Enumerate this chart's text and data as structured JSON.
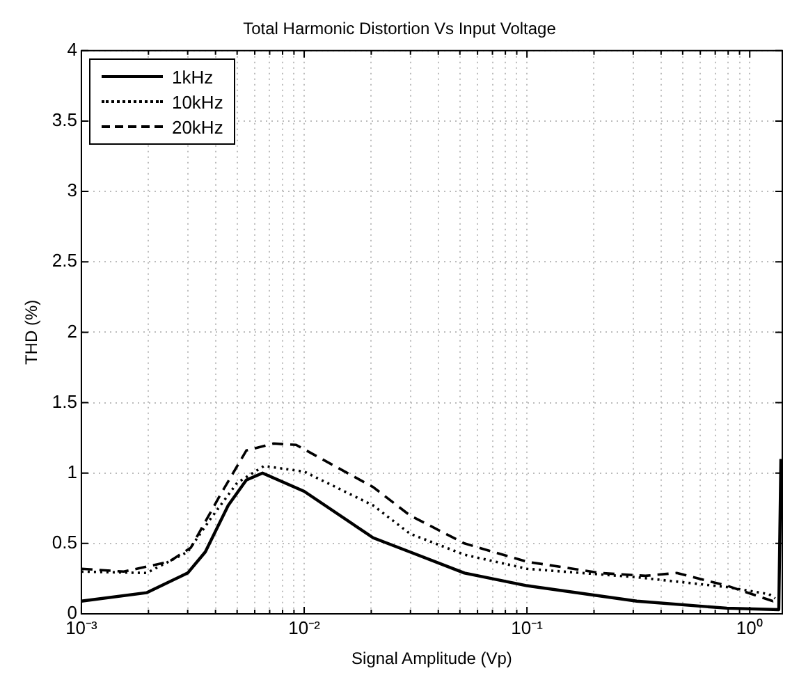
{
  "chart_data": {
    "type": "line",
    "title": "Total Harmonic Distortion Vs Input Voltage",
    "xlabel": "Signal Amplitude (Vp)",
    "ylabel": "THD (%)",
    "log": "x",
    "xlim": [
      0.001,
      1.4
    ],
    "ylim": [
      0,
      4
    ],
    "xticks": [
      {
        "value": 0.001,
        "label": "10⁻³"
      },
      {
        "value": 0.002,
        "label": null
      },
      {
        "value": 0.003,
        "label": null
      },
      {
        "value": 0.004,
        "label": null
      },
      {
        "value": 0.005,
        "label": null
      },
      {
        "value": 0.006,
        "label": null
      },
      {
        "value": 0.007,
        "label": null
      },
      {
        "value": 0.008,
        "label": null
      },
      {
        "value": 0.009,
        "label": null
      },
      {
        "value": 0.01,
        "label": "10⁻²"
      },
      {
        "value": 0.02,
        "label": null
      },
      {
        "value": 0.03,
        "label": null
      },
      {
        "value": 0.04,
        "label": null
      },
      {
        "value": 0.05,
        "label": null
      },
      {
        "value": 0.06,
        "label": null
      },
      {
        "value": 0.07,
        "label": null
      },
      {
        "value": 0.08,
        "label": null
      },
      {
        "value": 0.09,
        "label": null
      },
      {
        "value": 0.1,
        "label": "10⁻¹"
      },
      {
        "value": 0.2,
        "label": null
      },
      {
        "value": 0.3,
        "label": null
      },
      {
        "value": 0.4,
        "label": null
      },
      {
        "value": 0.5,
        "label": null
      },
      {
        "value": 0.6,
        "label": null
      },
      {
        "value": 0.7,
        "label": null
      },
      {
        "value": 0.8,
        "label": null
      },
      {
        "value": 0.9,
        "label": null
      },
      {
        "value": 1,
        "label": "10⁰"
      }
    ],
    "yticks": [
      0,
      0.5,
      1,
      1.5,
      2,
      2.5,
      3,
      3.5,
      4
    ],
    "grid": true,
    "legend": "top left",
    "marker": "none",
    "series": [
      {
        "name": "1kHz",
        "color": "#000000",
        "line_style": "solid",
        "x": [
          0.001,
          0.00196,
          0.003,
          0.0036,
          0.00456,
          0.0055,
          0.0065,
          0.01,
          0.0204,
          0.0298,
          0.0524,
          0.1,
          0.311,
          0.79,
          1.35,
          1.38
        ],
        "values": [
          0.09,
          0.15,
          0.29,
          0.44,
          0.77,
          0.95,
          1.0,
          0.87,
          0.54,
          0.44,
          0.29,
          0.2,
          0.09,
          0.04,
          0.03,
          1.1
        ]
      },
      {
        "name": "10kHz",
        "color": "#000000",
        "line_style": "dotted",
        "x": [
          0.001,
          0.00196,
          0.003,
          0.00378,
          0.005,
          0.0066,
          0.01,
          0.0204,
          0.0298,
          0.0524,
          0.1,
          0.311,
          0.79,
          1.22,
          1.3
        ],
        "values": [
          0.3,
          0.29,
          0.44,
          0.67,
          0.93,
          1.05,
          1.01,
          0.77,
          0.57,
          0.42,
          0.32,
          0.26,
          0.19,
          0.14,
          0.11
        ]
      },
      {
        "name": "20kHz",
        "color": "#000000",
        "line_style": "dashed",
        "x": [
          0.001,
          0.00155,
          0.00247,
          0.0031,
          0.00415,
          0.0055,
          0.0073,
          0.0092,
          0.0204,
          0.0298,
          0.0524,
          0.1,
          0.214,
          0.34,
          0.47,
          0.79,
          1.27,
          1.35
        ],
        "values": [
          0.32,
          0.3,
          0.37,
          0.47,
          0.83,
          1.16,
          1.21,
          1.2,
          0.9,
          0.7,
          0.5,
          0.37,
          0.29,
          0.27,
          0.29,
          0.2,
          0.09,
          0.12
        ]
      }
    ]
  }
}
